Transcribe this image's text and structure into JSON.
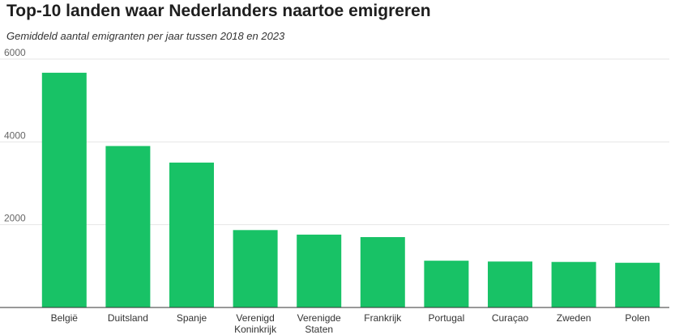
{
  "chart_data": {
    "type": "bar",
    "title": "Top-10 landen waar Nederlanders naartoe emigreren",
    "subtitle": "Gemiddeld aantal emigranten per jaar tussen 2018 en 2023",
    "categories": [
      "België",
      "Duitsland",
      "Spanje",
      "Verenigd Koninkrijk",
      "Verenigde Staten",
      "Frankrijk",
      "Portugal",
      "Curaçao",
      "Zweden",
      "Polen"
    ],
    "category_lines": [
      [
        "België"
      ],
      [
        "Duitsland"
      ],
      [
        "Spanje"
      ],
      [
        "Verenigd",
        "Koninkrijk"
      ],
      [
        "Verenigde",
        "Staten"
      ],
      [
        "Frankrijk"
      ],
      [
        "Portugal"
      ],
      [
        "Curaçao"
      ],
      [
        "Zweden"
      ],
      [
        "Polen"
      ]
    ],
    "values": [
      5670,
      3900,
      3500,
      1870,
      1760,
      1700,
      1130,
      1110,
      1100,
      1080
    ],
    "ylim": [
      0,
      6000
    ],
    "yticks": [
      2000,
      4000,
      6000
    ],
    "ytick_labels": [
      "2000",
      "4000",
      "6000"
    ],
    "xlabel": "",
    "ylabel": "",
    "grid": true,
    "bar_color": "#18c266"
  }
}
